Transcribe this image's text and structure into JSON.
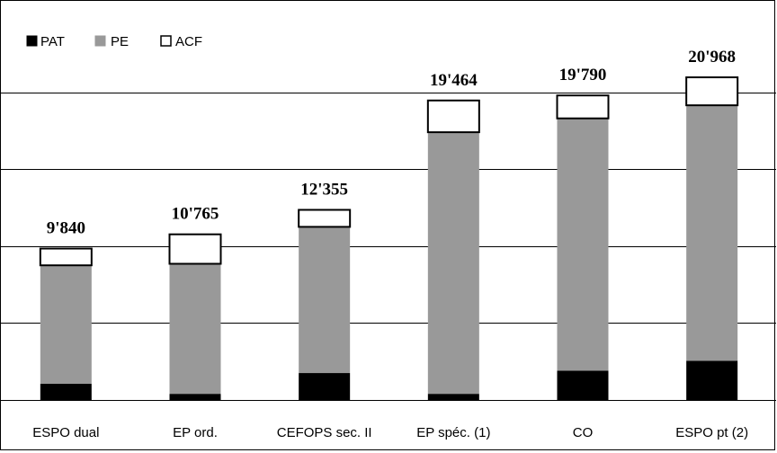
{
  "chart_data": {
    "type": "bar",
    "stacked": true,
    "title": "",
    "xlabel": "",
    "ylabel": "",
    "ylim": [
      0,
      25000
    ],
    "grid": true,
    "legend_position": "top-left",
    "categories": [
      "ESPO dual",
      "EP ord.",
      "CEFOPS sec. II",
      "EP spéc. (1)",
      "CO",
      "ESPO pt (2)"
    ],
    "totals": [
      "9'840",
      "10'765",
      "12'355",
      "19'464",
      "19'790",
      "20'968"
    ],
    "series": [
      {
        "name": "PAT",
        "color": "#000000",
        "values": [
          1050,
          400,
          1750,
          400,
          1900,
          2550
        ]
      },
      {
        "name": "PE",
        "color": "#999999",
        "values": [
          7700,
          8450,
          9500,
          17000,
          16400,
          16600
        ]
      },
      {
        "name": "ACF",
        "color": "#ffffff",
        "values": [
          1090,
          1915,
          1105,
          2064,
          1490,
          1818
        ]
      }
    ]
  }
}
